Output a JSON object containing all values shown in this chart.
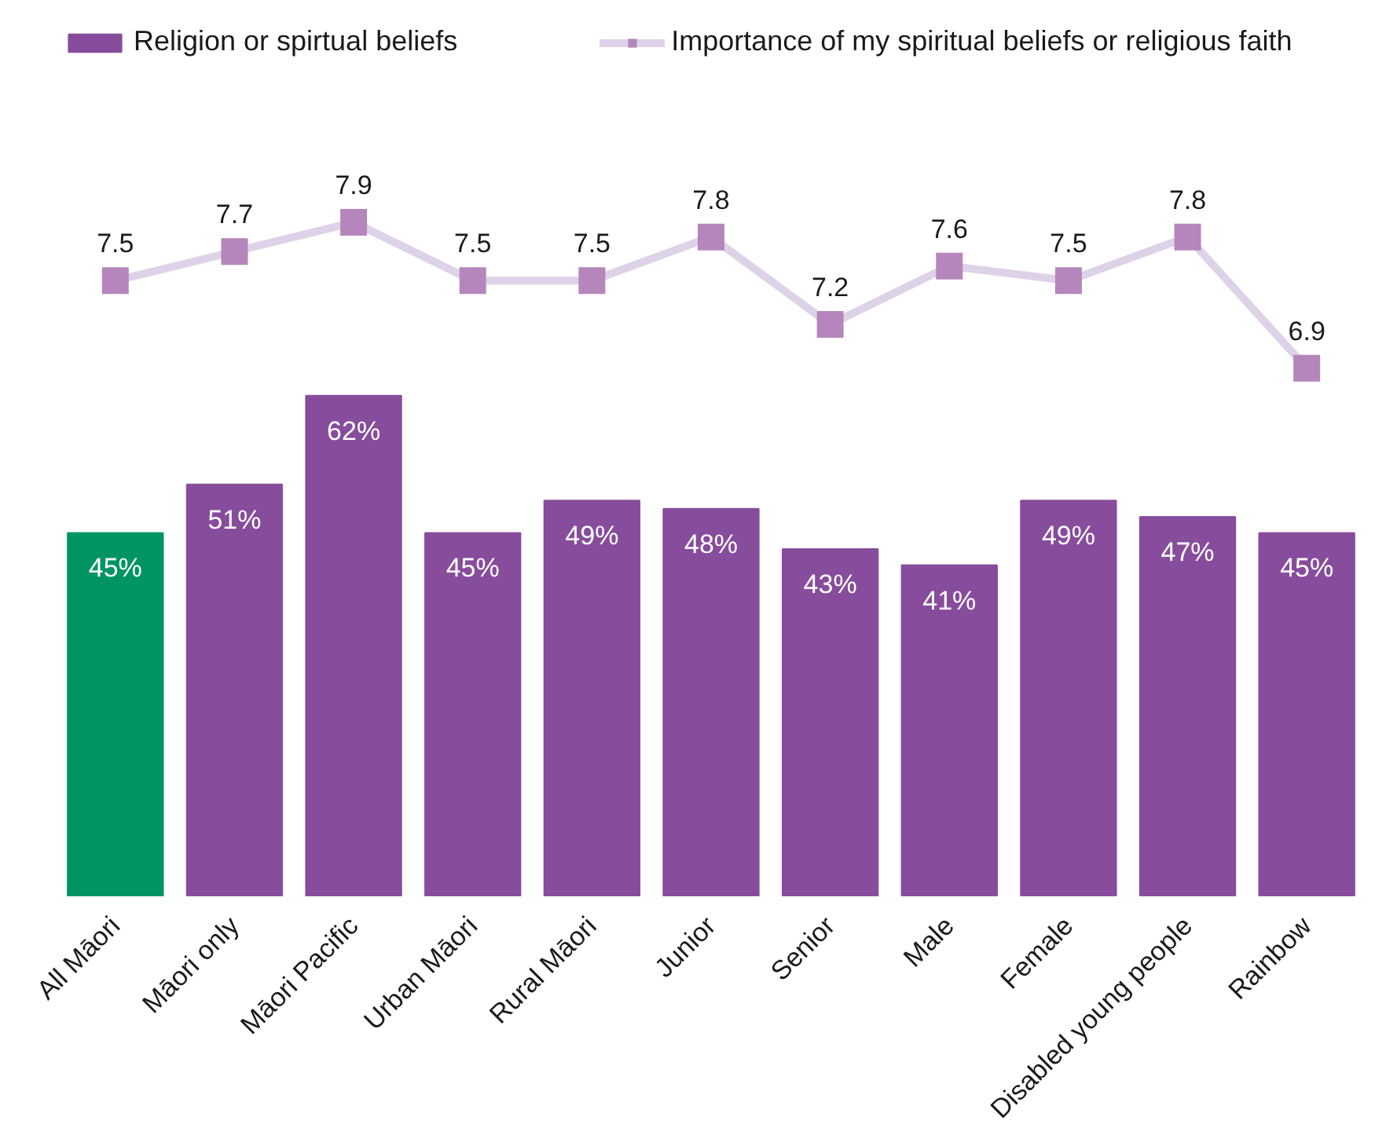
{
  "chart_data": [
    {
      "type": "line",
      "categories": [
        null,
        null,
        null,
        null,
        null,
        null,
        null,
        null,
        null,
        null,
        null
      ],
      "series": [
        {
          "name": "Importance of my spiritual beliefs or religious faith",
          "color": "#ded2e8",
          "colors": [
            "#b586bb",
            "#b586bb",
            "#b586bb",
            "#b586bb",
            "#b586bb",
            "#b586bb",
            "#b586bb",
            "#b586bb",
            "#b586bb",
            "#b586bb",
            "#b586bb"
          ],
          "values": [
            7.5,
            7.7,
            7.9,
            7.5,
            7.5,
            7.8,
            7.2,
            7.6,
            7.5,
            7.8,
            6.9
          ],
          "value_labels": [
            "7.5",
            "7.7",
            "7.9",
            "7.5",
            "7.5",
            "7.8",
            "7.2",
            "7.6",
            "7.5",
            "7.8",
            "6.9"
          ]
        }
      ],
      "marker": "square",
      "tick_labels": false,
      "legend": "top"
    },
    {
      "type": "bar",
      "categories": [
        "All Māori",
        "Māori only",
        "Māori Pacific",
        "Urban Māori",
        "Rural Māori",
        "Junior",
        "Senior",
        "Male",
        "Female",
        "Disabled young people",
        "Rainbow"
      ],
      "series": [
        {
          "name": "Religion or spirtual beliefs",
          "color": "#874c9c",
          "colors": [
            "#009463",
            "#874c9c",
            "#874c9c",
            "#874c9c",
            "#874c9c",
            "#874c9c",
            "#874c9c",
            "#874c9c",
            "#874c9c",
            "#874c9c",
            "#874c9c"
          ],
          "values": [
            45,
            51,
            62,
            45,
            49,
            48,
            43,
            41,
            49,
            47,
            45
          ],
          "value_labels": [
            "45%",
            "51%",
            "62%",
            "45%",
            "49%",
            "48%",
            "43%",
            "41%",
            "49%",
            "47%",
            "45%"
          ]
        }
      ],
      "tick_labels": "x"
    }
  ]
}
